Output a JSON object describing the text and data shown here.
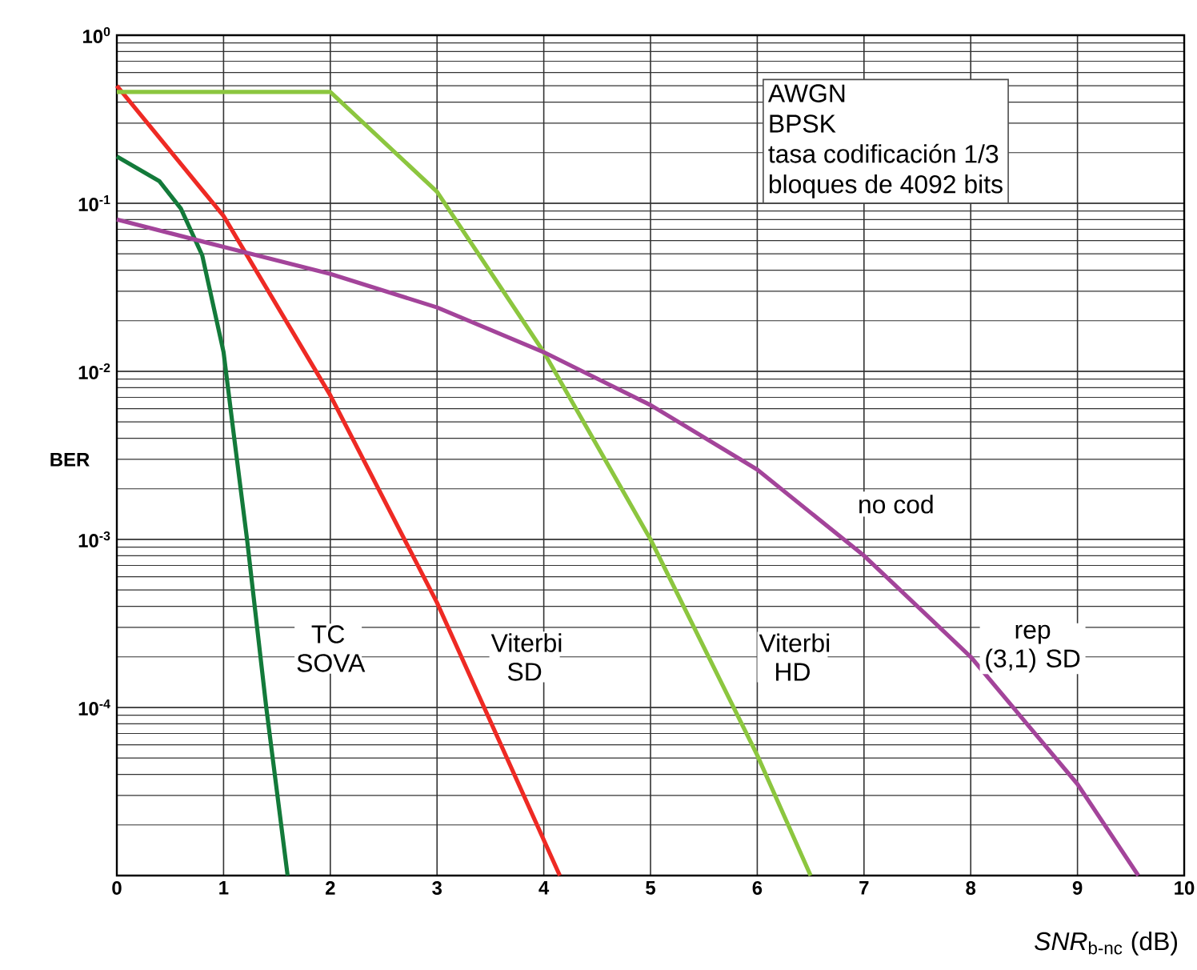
{
  "chart_data": {
    "type": "line",
    "xlabel": "*SNR*$_{b-nc}$      (dB)",
    "ylabel": "BER",
    "log": "y",
    "grid": true,
    "xlim": [
      0,
      10
    ],
    "xticks": [
      0,
      1,
      2,
      3,
      4,
      5,
      6,
      7,
      8,
      9,
      10
    ],
    "ylim": [
      1e-05,
      1
    ],
    "yticks": [
      {
        "value": 1e-05,
        "label": null
      },
      {
        "value": 0.0001,
        "label": "10$^{-4}$"
      },
      {
        "value": 0.001,
        "label": "10$^{-3}$"
      },
      {
        "value": 0.01,
        "label": "10$^{-2}$"
      },
      {
        "value": 0.1,
        "label": "10$^{-1}$"
      },
      {
        "value": 1,
        "label": "10$^{0}$"
      }
    ],
    "series": [
      {
        "name": "TC SOVA",
        "color": "#137a3a",
        "x": [
          0,
          0.4,
          0.6,
          0.8,
          1.0,
          1.1,
          1.22,
          1.4,
          1.6
        ],
        "values": [
          0.19,
          0.135,
          0.093,
          0.049,
          0.013,
          0.004,
          0.001,
          0.0001,
          1e-05
        ]
      },
      {
        "name": "Viterbi SD",
        "color": "#ee2a24",
        "x": [
          0,
          1,
          2,
          3,
          4.15
        ],
        "values": [
          0.5,
          0.084,
          0.0072,
          0.00042,
          1e-05
        ]
      },
      {
        "name": "Viterbi HD",
        "color": "#8cc63f",
        "x": [
          0,
          2,
          3,
          4,
          5,
          6,
          6.5
        ],
        "values": [
          0.46,
          0.46,
          0.117,
          0.013,
          0.001,
          5.2e-05,
          1e-05
        ]
      },
      {
        "name": "rep (3,1) SD",
        "color": "#a3449a",
        "x": [
          0,
          1,
          2,
          3,
          4,
          5,
          6,
          7,
          8,
          9,
          9.57
        ],
        "values": [
          0.08,
          0.055,
          0.038,
          0.024,
          0.013,
          0.0063,
          0.0026,
          0.0008,
          0.0002,
          3.5e-05,
          1e-05
        ]
      }
    ],
    "annotations": [
      "no cod",
      "AWGN",
      "BPSK",
      "tasa codificación  1/3",
      "bloques de 4092 bits"
    ]
  }
}
